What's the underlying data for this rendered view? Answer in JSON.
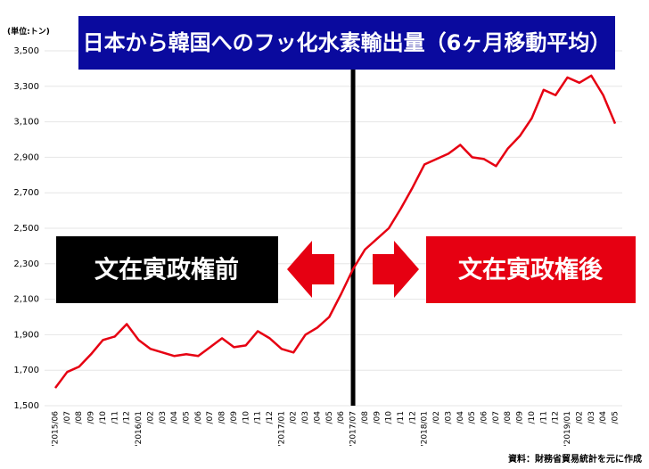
{
  "chart_data": {
    "type": "line",
    "title": "日本から韓国へのフッ化水素輸出量（6ヶ月移動平均）",
    "unit_label": "(単位:トン)",
    "source": "資料：財務省貿易統計を元に作成",
    "annotations": [
      "文在寅政権前",
      "文在寅政権後"
    ],
    "categories": [
      "'2015/06",
      "/07",
      "/08",
      "/09",
      "/10",
      "/11",
      "/12",
      "'2016/01",
      "/02",
      "/03",
      "/04",
      "/05",
      "/06",
      "/07",
      "/08",
      "/09",
      "/10",
      "/11",
      "/12",
      "'2017/01",
      "/02",
      "/03",
      "/04",
      "/05",
      "/06",
      "'2017/07",
      "/08",
      "/09",
      "/10",
      "/11",
      "/12",
      "'2018/01",
      "/02",
      "/03",
      "/04",
      "/05",
      "/06",
      "/07",
      "/08",
      "/09",
      "/10",
      "/11",
      "/12",
      "'2019/01",
      "/02",
      "/03",
      "/04",
      "/05"
    ],
    "series": [
      {
        "color": "#e60012",
        "values": [
          1600,
          1690,
          1720,
          1790,
          1870,
          1890,
          1960,
          1870,
          1820,
          1800,
          1780,
          1790,
          1780,
          1830,
          1880,
          1830,
          1840,
          1920,
          1880,
          1820,
          1800,
          1900,
          1940,
          2000,
          2130,
          2270,
          2380,
          2440,
          2500,
          2610,
          2730,
          2860,
          2890,
          2920,
          2970,
          2900,
          2890,
          2850,
          2950,
          3020,
          3120,
          3280,
          3250,
          3350,
          3320,
          3360,
          3250,
          3090
        ]
      }
    ],
    "ylim": [
      1500,
      3500
    ],
    "yticks": [
      {
        "value": 1500,
        "label": "1,500"
      },
      {
        "value": 1700,
        "label": "1,700"
      },
      {
        "value": 1900,
        "label": "1,900"
      },
      {
        "value": 2100,
        "label": "2,100"
      },
      {
        "value": 2300,
        "label": "2,300"
      },
      {
        "value": 2500,
        "label": "2,500"
      },
      {
        "value": 2700,
        "label": "2,700"
      },
      {
        "value": 2900,
        "label": "2,900"
      },
      {
        "value": 3100,
        "label": "3,100"
      },
      {
        "value": 3300,
        "label": "3,300"
      },
      {
        "value": 3500,
        "label": "3,500"
      }
    ],
    "grid": true
  }
}
